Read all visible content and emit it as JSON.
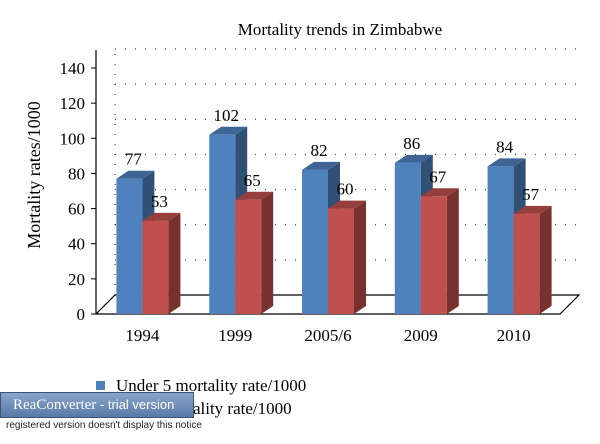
{
  "chart_data": {
    "type": "bar",
    "title": "Mortality trends in Zimbabwe",
    "ylabel": "Mortality rates/1000",
    "xlabel": "",
    "categories": [
      "1994",
      "1999",
      "2005/6",
      "2009",
      "2010"
    ],
    "ylim": [
      0,
      140
    ],
    "yticks": [
      0,
      20,
      40,
      60,
      80,
      100,
      120,
      140
    ],
    "grid": true,
    "legend_position": "bottom-left",
    "series": [
      {
        "name": "Under 5 mortality rate/1000",
        "values": [
          77,
          102,
          82,
          86,
          84
        ],
        "color": "#4f81bd"
      },
      {
        "name": "Infant mortality rate/1000",
        "values": [
          53,
          65,
          60,
          67,
          57
        ],
        "color": "#c0504d"
      }
    ]
  },
  "legend": {
    "series_1_label": "Under 5 mortality rate/1000",
    "series_2_label": "Infant mortality rate/1000"
  },
  "watermark": {
    "brand": "ReaConverter",
    "suffix": " - trial version",
    "notice": "registered version doesn't display this notice"
  }
}
